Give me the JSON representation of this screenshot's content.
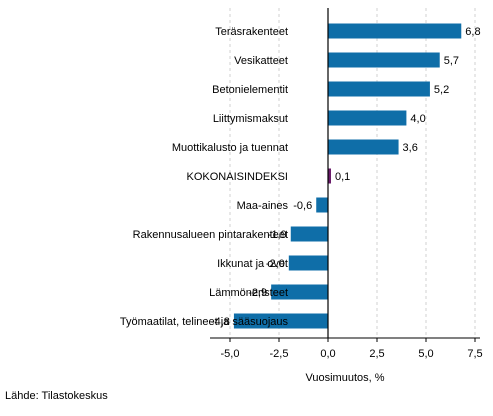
{
  "chart_data": {
    "type": "bar",
    "orientation": "horizontal",
    "categories": [
      "Teräsrakenteet",
      "Vesikatteet",
      "Betonielementit",
      "Liittymismaksut",
      "Muottikalusto ja tuennat",
      "KOKONAISINDEKSI",
      "Maa-aines",
      "Rakennusalueen pintarakenteet",
      "Ikkunat ja ovet",
      "Lämmöneristeet",
      "Työmaatilat, telineet ja sääsuojaus"
    ],
    "values": [
      6.8,
      5.7,
      5.2,
      4.0,
      3.6,
      0.1,
      -0.6,
      -1.9,
      -2.0,
      -2.9,
      -4.8
    ],
    "value_labels": [
      "6,8",
      "5,7",
      "5,2",
      "4,0",
      "3,6",
      "0,1",
      "-0,6",
      "-1,9",
      "-2,0",
      "-2,9",
      "-4,8"
    ],
    "xlim": [
      -6,
      8
    ],
    "xticks": [
      -5,
      -2.5,
      0,
      2.5,
      5,
      7.5
    ],
    "xtick_labels": [
      "-5,0",
      "-2,5",
      "0,0",
      "2,5",
      "5,0",
      "7,5"
    ],
    "xlabel": "Vuosimuutos, %",
    "grid": "vertical",
    "colors": {
      "bar": "#0f6ea8",
      "highlight": "#6a1b6a",
      "grid": "#d0d0d0",
      "axis": "#000000"
    },
    "highlight_category": "KOKONAISINDEKSI"
  },
  "source": "Lähde: Tilastokeskus"
}
